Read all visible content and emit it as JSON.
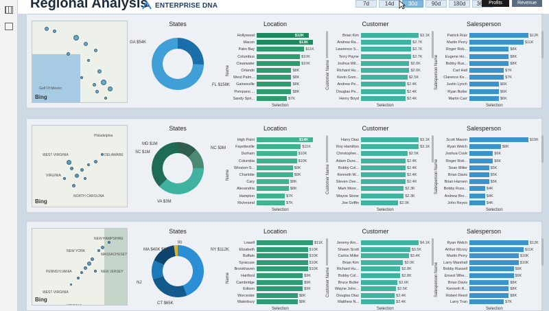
{
  "header": {
    "title": "Regional Analysis",
    "logo_text": "ENTERPRISE DNA",
    "date_buttons": [
      "7d",
      "14d",
      "30d",
      "90d",
      "180d",
      "360d"
    ],
    "selected_date": "30d",
    "metric_buttons": [
      "Profits",
      "Revenue"
    ]
  },
  "colors": {
    "panel1_bar": "#2d9b6e",
    "panel1_bar_hi": "#1f8a5d",
    "panel2_bar": "#3fb38f",
    "panel3_bar": "#2f9b74",
    "salesperson_bar": "#3b94c9"
  },
  "panels": [
    {
      "map": {
        "labels": [
          "Gulf Of Mexico"
        ],
        "bing": "Bing"
      },
      "states": {
        "title": "States",
        "slices": [
          {
            "label": "GA $54K",
            "value": 54
          },
          {
            "label": "FL $158K",
            "value": 158
          }
        ],
        "colors": [
          "#1a6fa8",
          "#3f9fd6"
        ]
      },
      "location": {
        "title": "Location",
        "ylabel": "Name",
        "xlabel": "Selection",
        "items": [
          {
            "name": "Hollywood",
            "value": "$12K",
            "v": 12
          },
          {
            "name": "Macon",
            "value": "$13K",
            "v": 13
          },
          {
            "name": "Palm Bay",
            "value": "$11K",
            "v": 11
          },
          {
            "name": "Columbus",
            "value": "$10K",
            "v": 10
          },
          {
            "name": "Clearwater",
            "value": "$10K",
            "v": 10
          },
          {
            "name": "Orlando",
            "value": "$8K",
            "v": 8
          },
          {
            "name": "West Palm...",
            "value": "$8K",
            "v": 8
          },
          {
            "name": "Gainesville",
            "value": "$8K",
            "v": 8
          },
          {
            "name": "Pompano ...",
            "value": "$8K",
            "v": 8
          },
          {
            "name": "Sandy Spri...",
            "value": "$7K",
            "v": 7
          }
        ]
      },
      "customer": {
        "title": "Customer",
        "ylabel": "Customer Name",
        "xlabel": "Selection",
        "items": [
          {
            "name": "Brian Kim",
            "value": "$3.1K",
            "v": 3.1
          },
          {
            "name": "Andrew Ra...",
            "value": "$2.7K",
            "v": 2.7
          },
          {
            "name": "Lawrence S...",
            "value": "$2.7K",
            "v": 2.7
          },
          {
            "name": "Terry Payne",
            "value": "$2.7K",
            "v": 2.7
          },
          {
            "name": "Joshua Wil...",
            "value": "$2.6K",
            "v": 2.6
          },
          {
            "name": "Richard Hu...",
            "value": "$2.6K",
            "v": 2.6
          },
          {
            "name": "Kevin Gom...",
            "value": "$2.5K",
            "v": 2.5
          },
          {
            "name": "Andrew Pe...",
            "value": "$2.4K",
            "v": 2.4
          },
          {
            "name": "Douglas Pe...",
            "value": "$2.4K",
            "v": 2.4
          },
          {
            "name": "Henry Boyd",
            "value": "$2.4K",
            "v": 2.4
          }
        ]
      },
      "salesperson": {
        "title": "Salesperson",
        "ylabel": "Salesperson Name",
        "xlabel": "Selection",
        "items": [
          {
            "name": "Patrick Ruiz",
            "value": "$12K",
            "v": 12
          },
          {
            "name": "Martin Perry",
            "value": "$11K",
            "v": 11
          },
          {
            "name": "Roger Rob...",
            "value": "$8K",
            "v": 8
          },
          {
            "name": "Eugene Ho...",
            "value": "$8K",
            "v": 8
          },
          {
            "name": "Bobby Rus...",
            "value": "$8K",
            "v": 8
          },
          {
            "name": "Carl Hall",
            "value": "$7K",
            "v": 7
          },
          {
            "name": "Clarence Ke...",
            "value": "$7K",
            "v": 7
          },
          {
            "name": "Justin Lynch",
            "value": "$6K",
            "v": 6
          },
          {
            "name": "Ryan Butler",
            "value": "$6K",
            "v": 6
          },
          {
            "name": "Martin Carr",
            "value": "$6K",
            "v": 6
          }
        ]
      }
    },
    {
      "map": {
        "labels": [
          "VIRGINIA",
          "NORTH CAROLINA",
          "DELAWARE",
          "Philadelphia",
          "WEST VIRGINIA"
        ],
        "bing": "Bing"
      },
      "states": {
        "title": "States",
        "slices": [
          {
            "label": "MD $1M",
            "value": 1
          },
          {
            "label": "SC $1M",
            "value": 1
          },
          {
            "label": "NC $3M",
            "value": 3
          },
          {
            "label": "VA $3M",
            "value": 3
          }
        ],
        "colors": [
          "#2f5e4e",
          "#4a8a74",
          "#3fb3a0",
          "#1e6b58"
        ]
      },
      "location": {
        "title": "Location",
        "ylabel": "Name",
        "xlabel": "Selection",
        "items": [
          {
            "name": "High Point",
            "value": "$14K",
            "v": 14
          },
          {
            "name": "Fayetteville",
            "value": "$11K",
            "v": 11
          },
          {
            "name": "Durham",
            "value": "$10K",
            "v": 10
          },
          {
            "name": "Columbia",
            "value": "$10K",
            "v": 10
          },
          {
            "name": "Winston-S...",
            "value": "$9K",
            "v": 9
          },
          {
            "name": "Charlotte",
            "value": "$9K",
            "v": 9
          },
          {
            "name": "Cary",
            "value": "$8K",
            "v": 8
          },
          {
            "name": "Alexandria",
            "value": "$8K",
            "v": 8
          },
          {
            "name": "Hampton",
            "value": "$7K",
            "v": 7
          },
          {
            "name": "Richmond",
            "value": "$7K",
            "v": 7
          }
        ]
      },
      "customer": {
        "title": "Customer",
        "ylabel": "Customer Name",
        "xlabel": "Selection",
        "items": [
          {
            "name": "Harry Diaz",
            "value": "$3.1K",
            "v": 3.1
          },
          {
            "name": "Roy Hamilton",
            "value": "$3.1K",
            "v": 3.1
          },
          {
            "name": "Christopher...",
            "value": "$2.5K",
            "v": 2.5
          },
          {
            "name": "Adam Dunc...",
            "value": "$2.4K",
            "v": 2.4
          },
          {
            "name": "Bobby Col...",
            "value": "$2.4K",
            "v": 2.4
          },
          {
            "name": "Kenneth W...",
            "value": "$2.4K",
            "v": 2.4
          },
          {
            "name": "Steven Ove...",
            "value": "$2.4K",
            "v": 2.4
          },
          {
            "name": "Mark Moor...",
            "value": "$2.3K",
            "v": 2.3
          },
          {
            "name": "Wayne Stone",
            "value": "$2.3K",
            "v": 2.3
          },
          {
            "name": "Joe Griffin",
            "value": "$2.0K",
            "v": 2.0
          }
        ]
      },
      "salesperson": {
        "title": "Salesperson",
        "ylabel": "Salesperson Name",
        "xlabel": "Selection",
        "items": [
          {
            "name": "Scott Mason",
            "value": "$15K",
            "v": 15
          },
          {
            "name": "Ryan Welch",
            "value": "$8K",
            "v": 8
          },
          {
            "name": "Joshua Cook",
            "value": "$6K",
            "v": 6
          },
          {
            "name": "Roger Rob...",
            "value": "$6K",
            "v": 6
          },
          {
            "name": "Sean Miller",
            "value": "$5K",
            "v": 5
          },
          {
            "name": "Brian Davis",
            "value": "$5K",
            "v": 5
          },
          {
            "name": "Brian Hansen",
            "value": "$5K",
            "v": 5
          },
          {
            "name": "Bobby Russ...",
            "value": "$4K",
            "v": 4
          },
          {
            "name": "Andrew Bro...",
            "value": "$4K",
            "v": 4
          },
          {
            "name": "John Reyes",
            "value": "$4K",
            "v": 4
          }
        ]
      }
    },
    {
      "map": {
        "labels": [
          "NEW HAMPSHIRE",
          "NEW YORK",
          "PENNSYLVANIA",
          "MASSACHUSETTS",
          "NEW JERSEY",
          "WEST VIRGINIA",
          "VIRGINIA"
        ],
        "bing": "Bing"
      },
      "states": {
        "title": "States",
        "slices": [
          {
            "label": "NY $112K",
            "value": 112
          },
          {
            "label": "CT $65K",
            "value": 65
          },
          {
            "label": "NJ",
            "value": 30
          },
          {
            "label": "MA $40K $6K",
            "value": 40
          },
          {
            "label": "RI",
            "value": 6
          }
        ],
        "colors": [
          "#2a8fd4",
          "#125a8c",
          "#1a7ab8",
          "#0e4470",
          "#d6b433"
        ]
      },
      "location": {
        "title": "Location",
        "ylabel": "Name",
        "xlabel": "Selection",
        "items": [
          {
            "name": "Lowell",
            "value": "$11K",
            "v": 11
          },
          {
            "name": "Elizabeth",
            "value": "$10K",
            "v": 10
          },
          {
            "name": "Buffalo",
            "value": "$10K",
            "v": 10
          },
          {
            "name": "Syracuse",
            "value": "$10K",
            "v": 10
          },
          {
            "name": "Brookhaven",
            "value": "$10K",
            "v": 10
          },
          {
            "name": "Hartford",
            "value": "$9K",
            "v": 9
          },
          {
            "name": "Cambridge",
            "value": "$9K",
            "v": 9
          },
          {
            "name": "Edison",
            "value": "$9K",
            "v": 9
          },
          {
            "name": "Worcester",
            "value": "$8K",
            "v": 8
          },
          {
            "name": "Waterbury",
            "value": "$8K",
            "v": 8
          }
        ]
      },
      "customer": {
        "title": "Customer",
        "ylabel": "Customer Name",
        "xlabel": "Selection",
        "items": [
          {
            "name": "Jeremy Arn...",
            "value": "$4.1K",
            "v": 4.1
          },
          {
            "name": "Shawn Scott",
            "value": "$3.5K",
            "v": 3.5
          },
          {
            "name": "Carlos Miller",
            "value": "$3.4K",
            "v": 3.4
          },
          {
            "name": "Brian Kim",
            "value": "$3.0K",
            "v": 3.0
          },
          {
            "name": "Richard Hu...",
            "value": "$2.8K",
            "v": 2.8
          },
          {
            "name": "Bobby Col...",
            "value": "$2.8K",
            "v": 2.8
          },
          {
            "name": "Bruce Butler",
            "value": "$2.6K",
            "v": 2.6
          },
          {
            "name": "Wayne John...",
            "value": "$2.5K",
            "v": 2.5
          },
          {
            "name": "Douglas Diaz",
            "value": "$2.4K",
            "v": 2.4
          },
          {
            "name": "Matthew N...",
            "value": "$2.4K",
            "v": 2.4
          }
        ]
      },
      "salesperson": {
        "title": "Salesperson",
        "ylabel": "Salesperson Name",
        "xlabel": "Selection",
        "items": [
          {
            "name": "Ryan Welch",
            "value": "$12K",
            "v": 12
          },
          {
            "name": "Arthur Mccoy",
            "value": "$11K",
            "v": 11
          },
          {
            "name": "Martin Perry",
            "value": "$10K",
            "v": 10
          },
          {
            "name": "Larry Marshall",
            "value": "$10K",
            "v": 10
          },
          {
            "name": "Bobby Russell",
            "value": "$9K",
            "v": 9
          },
          {
            "name": "Ernest Whe...",
            "value": "$9K",
            "v": 9
          },
          {
            "name": "Brian Davis",
            "value": "$8K",
            "v": 8
          },
          {
            "name": "Kenneth R...",
            "value": "$8K",
            "v": 8
          },
          {
            "name": "Robert Reed",
            "value": "$8K",
            "v": 8
          },
          {
            "name": "Larry Tran",
            "value": "$7K",
            "v": 7
          }
        ]
      }
    }
  ]
}
